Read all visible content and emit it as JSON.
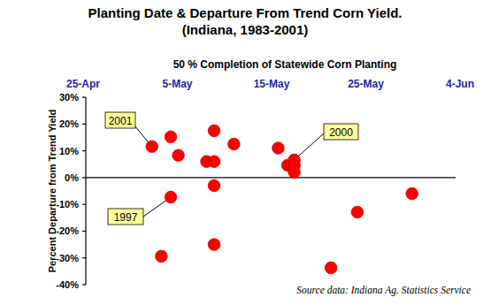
{
  "chart_data": {
    "type": "scatter",
    "title": "Planting Date & Departure From Trend Corn Yield.",
    "subtitle": "(Indiana, 1983-2001)",
    "x_label": "50 % Completion of Statewide Corn Planting",
    "y_label": "Percent Departure from Trend Yield",
    "source": "Source data: Indiana Ag. Statistics Service",
    "x": [
      7.3,
      9.3,
      10.1,
      9.3,
      8.3,
      13.1,
      13.9,
      13.9,
      13.9,
      13.9,
      16.0,
      20.7,
      21.7,
      22.4,
      22.4,
      22.4,
      26.3,
      29.1,
      34.9
    ],
    "values": [
      11.6,
      15.2,
      8.3,
      -7.3,
      -29.4,
      6,
      17.5,
      6,
      -3,
      -25,
      12.5,
      11,
      4.6,
      6.6,
      4.6,
      2,
      -33.7,
      -12.9,
      -6
    ],
    "color": "#ff0000",
    "marker": "circle",
    "xlim": [
      0,
      40
    ],
    "xticks": [
      {
        "value": 0,
        "label": "25-Apr"
      },
      {
        "value": 10,
        "label": "5-May"
      },
      {
        "value": 20,
        "label": "15-May"
      },
      {
        "value": 30,
        "label": "25-May"
      },
      {
        "value": 40,
        "label": "4-Jun"
      }
    ],
    "ylim": [
      -40,
      30
    ],
    "yticks": [
      {
        "value": -40,
        "label": "-40%"
      },
      {
        "value": -30,
        "label": "-30%"
      },
      {
        "value": -20,
        "label": "-20%"
      },
      {
        "value": -10,
        "label": "-10%"
      },
      {
        "value": 0,
        "label": "0%"
      },
      {
        "value": 10,
        "label": "10%"
      },
      {
        "value": 20,
        "label": "20%"
      },
      {
        "value": 30,
        "label": "30%"
      }
    ],
    "grid": false,
    "annotations": [
      {
        "text": "2001",
        "x": 7.3,
        "y": 11.6
      },
      {
        "text": "2000",
        "x": 22.4,
        "y": 6.6
      },
      {
        "text": "1997",
        "x": 9.3,
        "y": -7.3
      }
    ]
  }
}
